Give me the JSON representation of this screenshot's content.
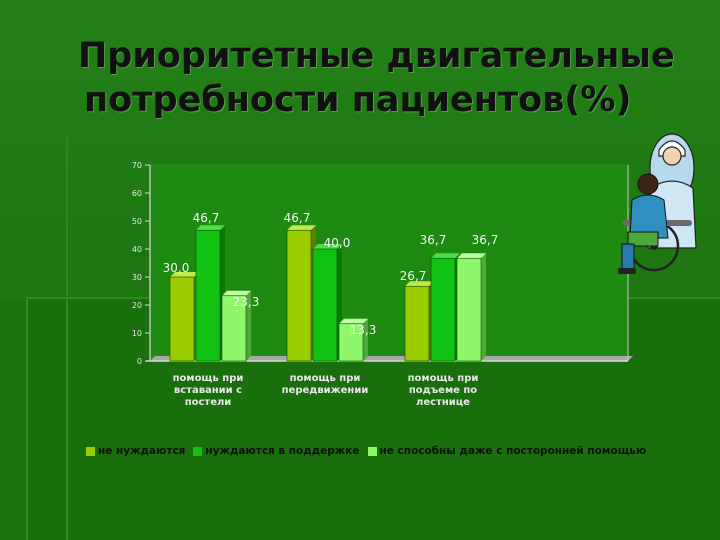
{
  "title": {
    "line1": "Приоритетные двигательные",
    "line2": "потребности  пациентов(%)"
  },
  "colors": {
    "series1": "#9acc00",
    "series2": "#11c212",
    "series3": "#8ef86a",
    "plot_bg": "#1f8a12",
    "frame": "#d8d8d8"
  },
  "illustration": {
    "icon": "nurse-wheelchair-clipart-icon"
  },
  "chart_data": {
    "type": "bar",
    "categories": [
      [
        "помощь при",
        "вставании с",
        "постели"
      ],
      [
        "помощь при",
        "передвижении"
      ],
      [
        "помощь при",
        "подъеме по",
        "лестнице"
      ]
    ],
    "series": [
      {
        "name": "не нуждаются",
        "values": [
          30.0,
          46.7,
          26.7
        ],
        "labels": [
          "30,0",
          "46,7",
          "26,7"
        ]
      },
      {
        "name": "нуждаются в поддержке",
        "values": [
          46.7,
          40.0,
          36.7
        ],
        "labels": [
          "46,7",
          "40,0",
          "36,7"
        ]
      },
      {
        "name": "не способны даже с посторонней помощью",
        "values": [
          23.3,
          13.3,
          36.7
        ],
        "labels": [
          "23,3",
          "13,3",
          "36,7"
        ]
      }
    ],
    "ylim": [
      0,
      70
    ],
    "yticks": [
      0,
      10,
      20,
      30,
      40,
      50,
      60,
      70
    ],
    "grid": false,
    "legend": "bottom"
  }
}
